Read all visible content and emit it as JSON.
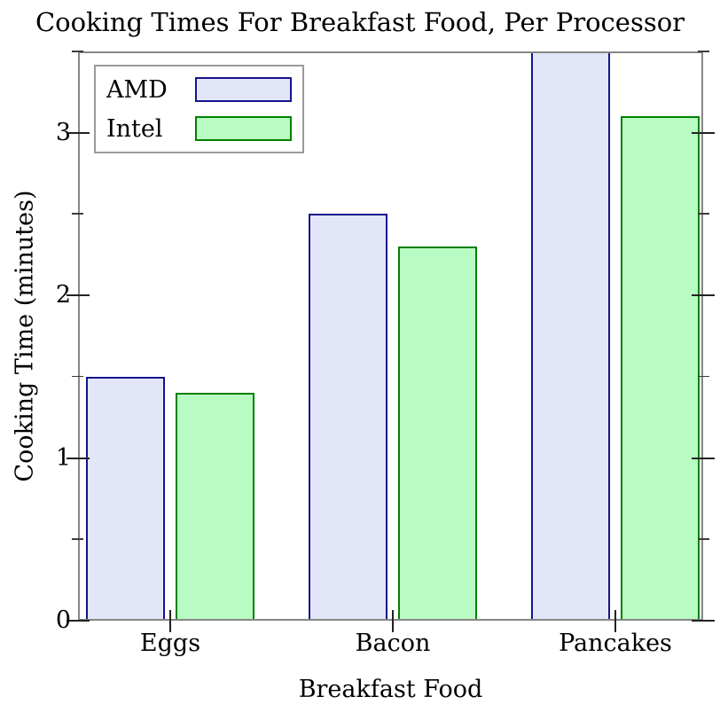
{
  "title": "Cooking Times For Breakfast Food, Per Processor",
  "chart_data": {
    "type": "bar",
    "categories": [
      "Eggs",
      "Bacon",
      "Pancakes"
    ],
    "series": [
      {
        "name": "AMD",
        "values": [
          1.5,
          2.5,
          3.5
        ],
        "fill": "#e3e6f8",
        "border": "#14148c"
      },
      {
        "name": "Intel",
        "values": [
          1.4,
          2.3,
          3.1
        ],
        "fill": "#b9fcc3",
        "border": "#008000"
      }
    ],
    "title": "Cooking Times For Breakfast Food, Per Processor",
    "xlabel": "Breakfast Food",
    "ylabel": "Cooking Time (minutes)",
    "ylim": [
      0,
      3.5
    ],
    "y_major_ticks": [
      0,
      1,
      2,
      3
    ],
    "y_minor_ticks": [
      0.5,
      1.5,
      2.5,
      3.5
    ],
    "grid": false,
    "legend_position": "top-left",
    "frame": "box-with-left-right-ticks"
  },
  "colors": {
    "frame": "#868686",
    "tick_major": "#222222",
    "tick_minor": "#3c3c3c",
    "text": "#000000",
    "legend_border": "#9a9a9a",
    "background": "#ffffff"
  }
}
